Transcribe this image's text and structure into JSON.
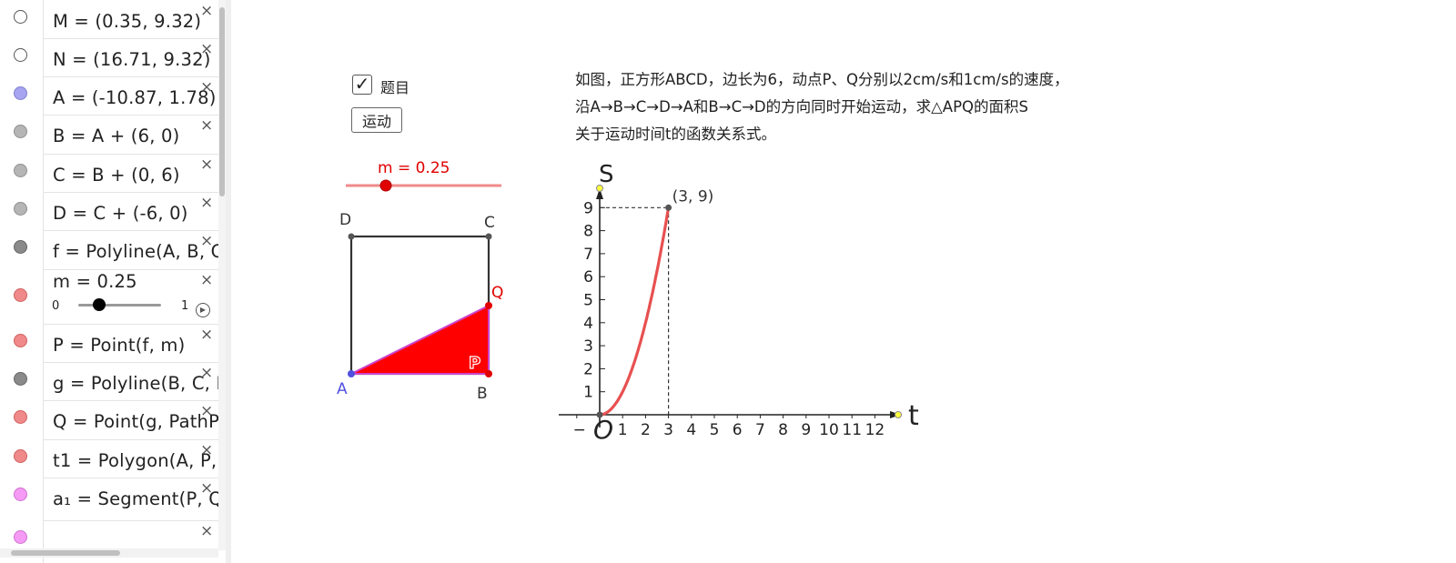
{
  "algebra": {
    "rows": [
      {
        "expr": "M = (0.35, 9.32)",
        "dot_fill": "#ffffff",
        "dot_border": "#555555"
      },
      {
        "expr": "N = (16.71, 9.32)",
        "dot_fill": "#ffffff",
        "dot_border": "#555555"
      },
      {
        "expr": "A = (-10.87, 1.78)",
        "dot_fill": "#a7a4f0",
        "dot_border": "#8080d0"
      },
      {
        "expr": "B = A + (6, 0)",
        "dot_fill": "#b5b5b5",
        "dot_border": "#909090"
      },
      {
        "expr": "C = B + (0, 6)",
        "dot_fill": "#b5b5b5",
        "dot_border": "#909090"
      },
      {
        "expr": "D = C + (-6, 0)",
        "dot_fill": "#b5b5b5",
        "dot_border": "#909090"
      },
      {
        "expr": "f = Polyline(A, B, C",
        "dot_fill": "#8a8a8a",
        "dot_border": "#666666"
      },
      {
        "expr": "m = 0.25",
        "dot_fill": "#f08a8a",
        "dot_border": "#d06060",
        "slider": {
          "min": "0",
          "max": "1",
          "value": 0.25
        }
      },
      {
        "expr": "P = Point(f, m)",
        "dot_fill": "#f08a8a",
        "dot_border": "#d06060"
      },
      {
        "expr": "g = Polyline(B, C, I",
        "dot_fill": "#8a8a8a",
        "dot_border": "#666666"
      },
      {
        "expr": "Q = Point(g, PathP",
        "dot_fill": "#f08a8a",
        "dot_border": "#d06060"
      },
      {
        "expr": "t1 = Polygon(A, P,",
        "dot_fill": "#f08a8a",
        "dot_border": "#d06060"
      },
      {
        "expr": "a₁ = Segment(P, Q",
        "dot_fill": "#f59bf5",
        "dot_border": "#d070d0"
      },
      {
        "expr": "",
        "dot_fill": "#f59bf5",
        "dot_border": "#d070d0"
      }
    ],
    "close_glyph": "×"
  },
  "controls": {
    "checkbox_label": "题目",
    "checkbox_checked": true,
    "button_label": "运动",
    "slider_label": "m = 0.25",
    "slider_value": 0.25
  },
  "problem_text": [
    "如图，正方形ABCD，边长为6，动点P、Q分别以2cm/s和1cm/s的速度，",
    "沿A→B→C→D→A和B→C→D的方向同时开始运动，求△APQ的面积S",
    "关于运动时间t的函数关系式。"
  ],
  "square": {
    "labels": {
      "A": "A",
      "B": "B",
      "C": "C",
      "D": "D",
      "P": "P",
      "Q": "Q"
    },
    "colors": {
      "fill": "#ff0000",
      "edge": "#cc44cc",
      "square": "#333333",
      "A": "#5050e0",
      "red": "#e00000"
    }
  },
  "chart_data": {
    "type": "line",
    "xlabel": "t",
    "ylabel": "S",
    "origin_label": "O",
    "x_ticks": [
      "1",
      "2",
      "3",
      "4",
      "5",
      "6",
      "7",
      "8",
      "9",
      "10",
      "11",
      "12"
    ],
    "y_ticks": [
      "1",
      "2",
      "3",
      "4",
      "5",
      "6",
      "7",
      "8",
      "9"
    ],
    "xlim": [
      0,
      12
    ],
    "ylim": [
      0,
      9
    ],
    "series": [
      {
        "x": [
          0,
          0.5,
          1,
          1.5,
          2,
          2.5,
          3
        ],
        "y": [
          0,
          0.25,
          1,
          2.25,
          4,
          6.25,
          9
        ],
        "color": "#e85050"
      }
    ],
    "annotation": "(3, 9)"
  }
}
